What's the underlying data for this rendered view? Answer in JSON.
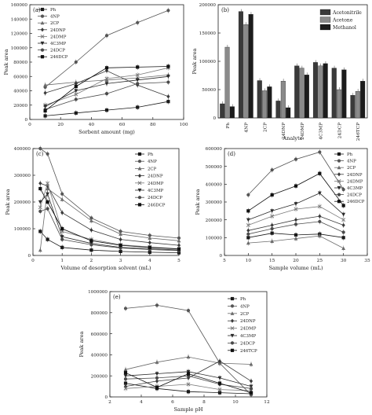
{
  "chart_data": [
    {
      "panel": "(a)",
      "type": "line",
      "xlabel": "Sorbent amount (mg)",
      "ylabel": "Peak area",
      "xlim": [
        0,
        100
      ],
      "ylim": [
        0,
        160000
      ],
      "xticks": [
        0,
        20,
        40,
        60,
        80,
        100
      ],
      "yticks": [
        0,
        20000,
        40000,
        60000,
        80000,
        100000,
        120000,
        140000,
        160000
      ],
      "legend_position": "top-left",
      "x": [
        10,
        30,
        50,
        70,
        90
      ],
      "series": [
        {
          "name": "Ph",
          "values": [
            5000,
            9000,
            13000,
            17000,
            25000
          ]
        },
        {
          "name": "4NP",
          "values": [
            45000,
            80000,
            117000,
            135000,
            152000
          ]
        },
        {
          "name": "2CP",
          "values": [
            48000,
            52000,
            55000,
            58000,
            62000
          ]
        },
        {
          "name": "24DNP",
          "values": [
            37000,
            50000,
            68000,
            48000,
            32000
          ]
        },
        {
          "name": "24DMP",
          "values": [
            20000,
            35000,
            57000,
            62000,
            72000
          ]
        },
        {
          "name": "4C3MP",
          "values": [
            18000,
            40000,
            50000,
            55000,
            60000
          ]
        },
        {
          "name": "24DCP",
          "values": [
            14000,
            28000,
            36000,
            50000,
            52000
          ]
        },
        {
          "name": "246DCP",
          "values": [
            12000,
            46000,
            72000,
            73000,
            74000
          ]
        }
      ]
    },
    {
      "panel": "(b)",
      "type": "bar",
      "xlabel": "Analyte",
      "ylabel": "Peak area",
      "ylim": [
        0,
        200000
      ],
      "yticks": [
        0,
        50000,
        100000,
        150000,
        200000
      ],
      "legend_position": "top-right",
      "categories": [
        "Ph",
        "4NP",
        "2CP",
        "24DNP",
        "24DMP",
        "4C3MP",
        "24DCP",
        "246TCP"
      ],
      "series": [
        {
          "name": "Acetonitrile",
          "values": [
            25000,
            188000,
            66000,
            30000,
            92000,
            98000,
            88000,
            40000
          ]
        },
        {
          "name": "Acetone",
          "values": [
            125000,
            165000,
            48000,
            65000,
            88000,
            92000,
            50000,
            47000
          ]
        },
        {
          "name": "Methanol",
          "values": [
            20000,
            183000,
            55000,
            18000,
            76000,
            96000,
            85000,
            65000
          ]
        }
      ]
    },
    {
      "panel": "(c)",
      "type": "line",
      "xlabel": "Volume of desorption solvent (mL)",
      "ylabel": "Peak area",
      "xlim": [
        0,
        5
      ],
      "ylim": [
        0,
        400000
      ],
      "xticks": [
        0,
        1,
        2,
        3,
        4,
        5
      ],
      "yticks": [
        0,
        100000,
        200000,
        300000,
        400000
      ],
      "legend_position": "top-right",
      "x": [
        0.25,
        0.5,
        1,
        2,
        3,
        4,
        5
      ],
      "series": [
        {
          "name": "Ph",
          "values": [
            90000,
            60000,
            30000,
            20000,
            15000,
            12000,
            10000
          ]
        },
        {
          "name": "4NP",
          "values": [
            400000,
            380000,
            230000,
            140000,
            90000,
            75000,
            65000
          ]
        },
        {
          "name": "2CP",
          "values": [
            20000,
            250000,
            210000,
            130000,
            80000,
            65000,
            55000
          ]
        },
        {
          "name": "24DNP",
          "values": [
            270000,
            260000,
            160000,
            95000,
            60000,
            48000,
            38000
          ]
        },
        {
          "name": "24DMP",
          "values": [
            180000,
            270000,
            90000,
            60000,
            40000,
            32000,
            25000
          ]
        },
        {
          "name": "4C3MP",
          "values": [
            200000,
            230000,
            70000,
            45000,
            30000,
            25000,
            20000
          ]
        },
        {
          "name": "24DCP",
          "values": [
            165000,
            175000,
            60000,
            40000,
            28000,
            22000,
            18000
          ]
        },
        {
          "name": "246DCP",
          "values": [
            250000,
            200000,
            100000,
            55000,
            38000,
            30000,
            24000
          ]
        }
      ]
    },
    {
      "panel": "(d)",
      "type": "line",
      "xlabel": "Sample volume (mL)",
      "ylabel": "Peak area",
      "xlim": [
        5,
        35
      ],
      "ylim": [
        0,
        600000
      ],
      "xticks": [
        5,
        10,
        15,
        20,
        25,
        30,
        35
      ],
      "yticks": [
        0,
        100000,
        200000,
        300000,
        400000,
        500000,
        600000
      ],
      "legend_position": "top-right",
      "x": [
        10,
        15,
        20,
        25,
        30
      ],
      "series": [
        {
          "name": "Ph",
          "values": [
            100000,
            125000,
            115000,
            120000,
            100000
          ]
        },
        {
          "name": "4NP",
          "values": [
            340000,
            480000,
            540000,
            580000,
            370000
          ]
        },
        {
          "name": "2CP",
          "values": [
            70000,
            80000,
            95000,
            110000,
            40000
          ]
        },
        {
          "name": "24DNP",
          "values": [
            140000,
            170000,
            200000,
            220000,
            170000
          ]
        },
        {
          "name": "24DMP",
          "values": [
            170000,
            220000,
            260000,
            275000,
            200000
          ]
        },
        {
          "name": "4C3MP",
          "values": [
            200000,
            250000,
            290000,
            350000,
            230000
          ]
        },
        {
          "name": "24DCP",
          "values": [
            120000,
            150000,
            175000,
            190000,
            130000
          ]
        },
        {
          "name": "246DCP",
          "values": [
            250000,
            340000,
            390000,
            460000,
            280000
          ]
        }
      ]
    },
    {
      "panel": "(e)",
      "type": "line",
      "xlabel": "Sample pH",
      "ylabel": "Peak area",
      "xlim": [
        2,
        12
      ],
      "ylim": [
        0,
        1000000
      ],
      "xticks": [
        2,
        4,
        6,
        8,
        10,
        12
      ],
      "yticks": [
        0,
        200000,
        400000,
        600000,
        800000,
        1000000
      ],
      "legend_position": "top-right",
      "x": [
        3,
        5,
        7,
        9,
        11
      ],
      "series": [
        {
          "name": "Ph",
          "values": [
            130000,
            80000,
            50000,
            40000,
            30000
          ]
        },
        {
          "name": "4NP",
          "values": [
            840000,
            870000,
            820000,
            320000,
            20000
          ]
        },
        {
          "name": "2CP",
          "values": [
            260000,
            330000,
            380000,
            320000,
            310000
          ]
        },
        {
          "name": "24DNP",
          "values": [
            100000,
            150000,
            180000,
            340000,
            150000
          ]
        },
        {
          "name": "24DMP",
          "values": [
            80000,
            100000,
            120000,
            70000,
            60000
          ]
        },
        {
          "name": "4C3MP",
          "values": [
            200000,
            220000,
            240000,
            180000,
            100000
          ]
        },
        {
          "name": "24DCP",
          "values": [
            170000,
            180000,
            200000,
            120000,
            80000
          ]
        },
        {
          "name": "246TCP",
          "values": [
            230000,
            90000,
            220000,
            130000,
            40000
          ]
        }
      ]
    }
  ]
}
